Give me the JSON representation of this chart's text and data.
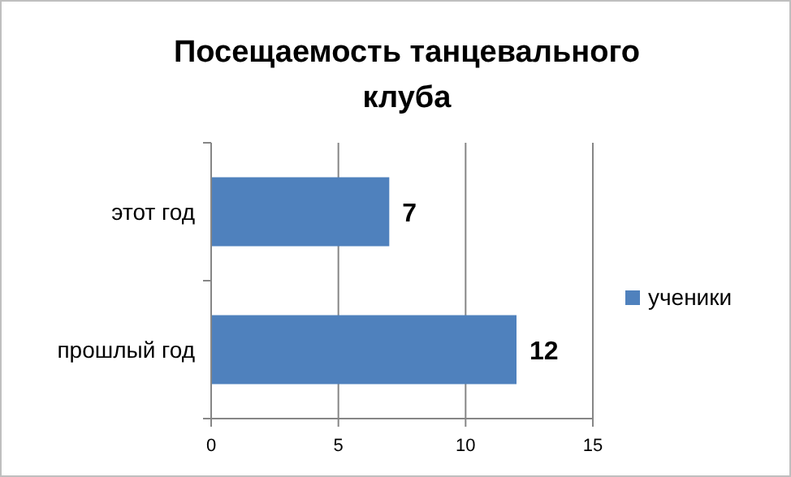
{
  "chart_data": {
    "type": "bar",
    "orientation": "horizontal",
    "title": "Посещаемость танцевального клуба",
    "categories": [
      "этот год",
      "прошлый год"
    ],
    "series": [
      {
        "name": "ученики",
        "color": "#4f81bd",
        "values": [
          7,
          12
        ]
      }
    ],
    "xlim": [
      0,
      15
    ],
    "xticks": [
      0,
      5,
      10,
      15
    ],
    "grid": "x",
    "legend": "right",
    "data_labels": true
  }
}
